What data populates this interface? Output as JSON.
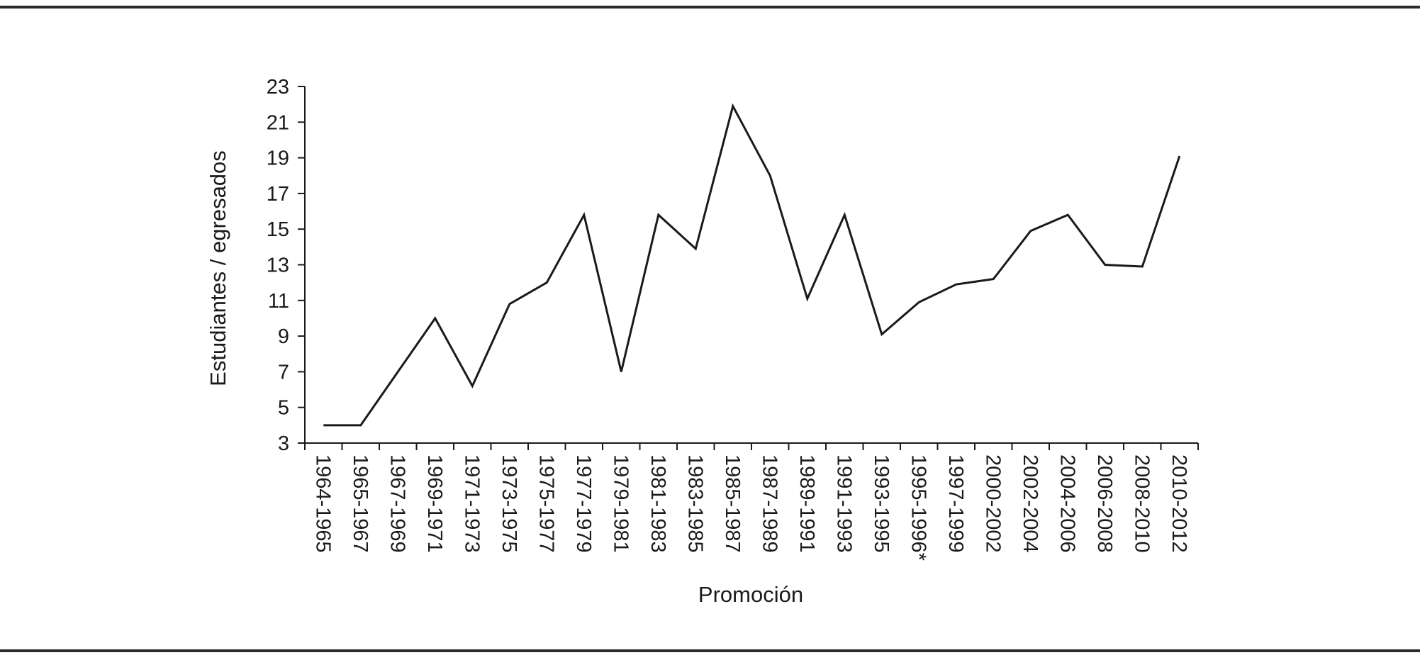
{
  "chart_data": {
    "type": "line",
    "title": "",
    "xlabel": "Promoción",
    "ylabel": "Estudiantes / egresados",
    "ylim": [
      3,
      23
    ],
    "yticks": [
      3,
      5,
      7,
      9,
      11,
      13,
      15,
      17,
      19,
      21,
      23
    ],
    "grid": false,
    "legend": "none",
    "line_color": "#1a1a1a",
    "categories": [
      "1964-1965",
      "1965-1967",
      "1967-1969",
      "1969-1971",
      "1971-1973",
      "1973-1975",
      "1975-1977",
      "1977-1979",
      "1979-1981",
      "1981-1983",
      "1983-1985",
      "1985-1987",
      "1987-1989",
      "1989-1991",
      "1991-1993",
      "1993-1995",
      "1995-1996*",
      "1997-1999",
      "2000-2002",
      "2002-2004",
      "2004-2006",
      "2006-2008",
      "2008-2010",
      "2010-2012"
    ],
    "series": [
      {
        "values": [
          4,
          4,
          7,
          10,
          6.2,
          10.8,
          12,
          15.8,
          7,
          15.8,
          13.9,
          21.9,
          18,
          11.1,
          15.8,
          9.1,
          10.9,
          11.9,
          12.2,
          14.9,
          15.8,
          13,
          12.9,
          19.1
        ]
      }
    ]
  }
}
